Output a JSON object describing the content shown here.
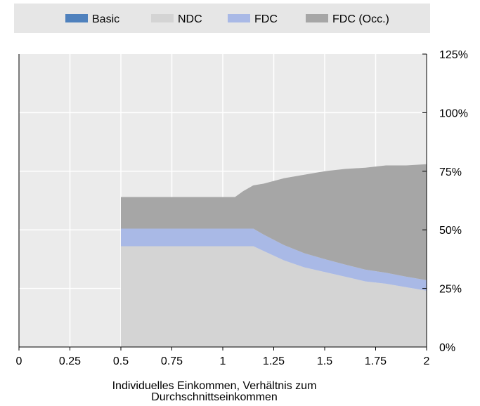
{
  "chart_data": {
    "type": "area",
    "stacked": true,
    "xlabel": "Individuelles Einkommen, Verhältnis zum Durchschnittseinkommen",
    "xlabel_lines": [
      "Individuelles Einkommen, Verhältnis zum",
      "Durchschnittseinkommen"
    ],
    "ylabel": "",
    "xlim": [
      0,
      2
    ],
    "ylim": [
      0,
      1.25
    ],
    "x_ticks": [
      0,
      0.25,
      0.5,
      0.75,
      1,
      1.25,
      1.5,
      1.75,
      2
    ],
    "x_tick_labels": [
      "0",
      "0.25",
      "0.5",
      "0.75",
      "1",
      "1.25",
      "1.5",
      "1.75",
      "2"
    ],
    "y_ticks": [
      0,
      0.25,
      0.5,
      0.75,
      1.0,
      1.25
    ],
    "y_tick_labels": [
      "0%",
      "25%",
      "50%",
      "75%",
      "100%",
      "125%"
    ],
    "y_axis_side": "right",
    "grid": true,
    "legend_position": "top",
    "x": [
      0.5,
      0.52,
      0.6,
      0.7,
      0.8,
      0.9,
      1.0,
      1.06,
      1.1,
      1.15,
      1.2,
      1.3,
      1.4,
      1.5,
      1.6,
      1.7,
      1.8,
      1.9,
      2.0
    ],
    "series": [
      {
        "name": "Basic",
        "color": "#4f81bd",
        "values": [
          0,
          0,
          0,
          0,
          0,
          0,
          0,
          0,
          0,
          0,
          0,
          0,
          0,
          0,
          0,
          0,
          0,
          0,
          0
        ]
      },
      {
        "name": "NDC",
        "color": "#d4d4d4",
        "values": [
          0.43,
          0.43,
          0.43,
          0.43,
          0.43,
          0.43,
          0.43,
          0.43,
          0.43,
          0.43,
          0.41,
          0.37,
          0.34,
          0.32,
          0.3,
          0.28,
          0.27,
          0.255,
          0.24
        ]
      },
      {
        "name": "FDC",
        "color": "#a9b9e6",
        "values": [
          0.075,
          0.075,
          0.075,
          0.075,
          0.075,
          0.075,
          0.075,
          0.075,
          0.075,
          0.075,
          0.07,
          0.065,
          0.06,
          0.055,
          0.052,
          0.05,
          0.047,
          0.045,
          0.045
        ]
      },
      {
        "name": "FDC (Occ.)",
        "color": "#a6a6a6",
        "values": [
          0.135,
          0.135,
          0.135,
          0.135,
          0.135,
          0.135,
          0.135,
          0.135,
          0.16,
          0.185,
          0.217,
          0.285,
          0.335,
          0.375,
          0.408,
          0.435,
          0.458,
          0.475,
          0.495
        ]
      }
    ]
  }
}
